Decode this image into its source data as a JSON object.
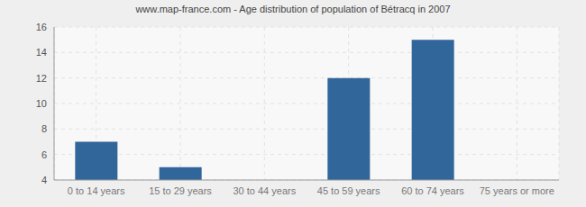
{
  "chart_data": {
    "type": "bar",
    "title": "www.map-france.com - Age distribution of population of Bétracq in 2007",
    "categories": [
      "0 to 14 years",
      "15 to 29 years",
      "30 to 44 years",
      "45 to 59 years",
      "60 to 74 years",
      "75 years or more"
    ],
    "values": [
      7,
      5,
      4,
      12,
      15,
      4
    ],
    "color": "#31669a",
    "ylim": [
      4,
      16
    ],
    "yticks": [
      4,
      6,
      8,
      10,
      12,
      14,
      16
    ],
    "grid": true
  }
}
